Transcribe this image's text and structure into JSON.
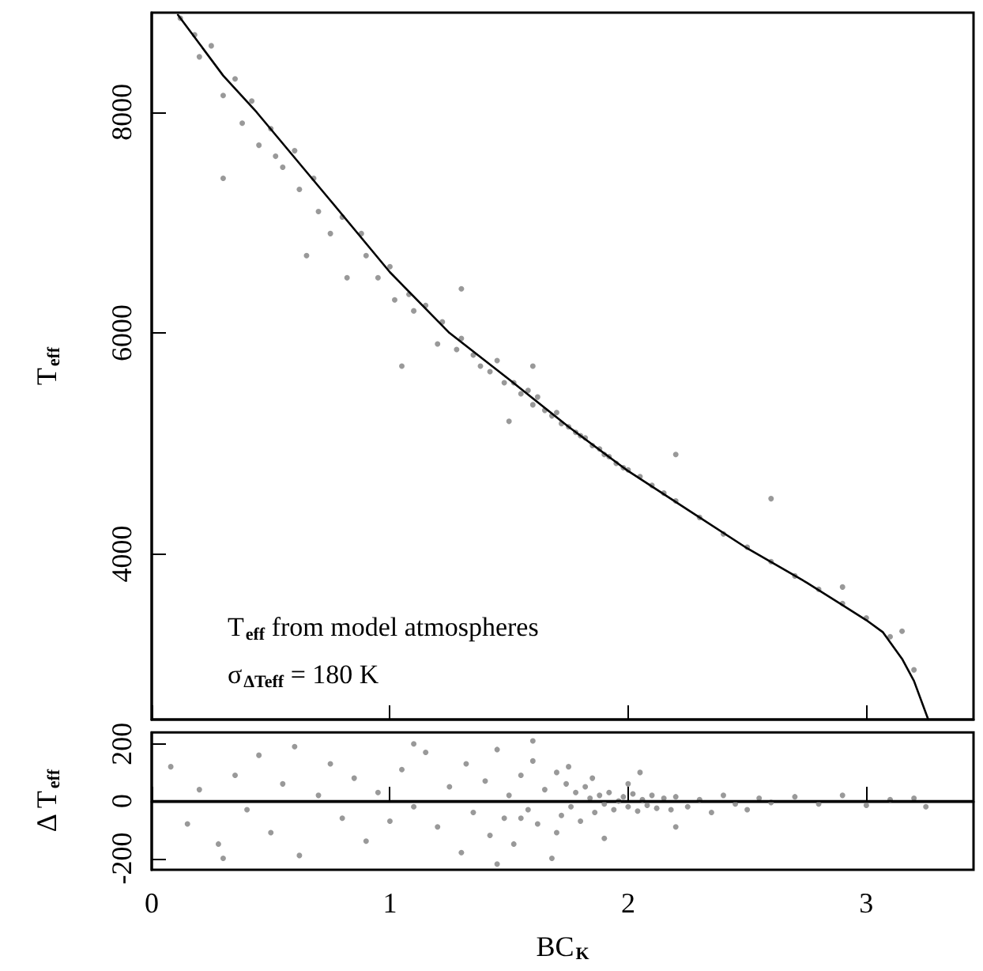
{
  "chart_data": [
    {
      "type": "scatter",
      "ylabel": "T$_{eff}$",
      "annotations": [
        "T$_{eff}$ from model atmospheres",
        "σ$_{ΔTeff}$ = 180 K"
      ],
      "xlim": [
        0,
        3.45
      ],
      "xticks": [
        0,
        1,
        2,
        3
      ],
      "ylim": [
        2500,
        8900
      ],
      "yticks": [
        4000,
        6000,
        8000
      ],
      "tick_labels": "y",
      "grid": false,
      "series": [
        {
          "marker": "circle",
          "color": "#808080",
          "x": [
            0.12,
            0.18,
            0.2,
            0.25,
            0.3,
            0.35,
            0.38,
            0.42,
            0.45,
            0.5,
            0.52,
            0.55,
            0.6,
            0.62,
            0.68,
            0.7,
            0.75,
            0.8,
            0.82,
            0.88,
            0.9,
            0.95,
            1.0,
            1.02,
            1.08,
            1.1,
            1.15,
            1.2,
            1.22,
            1.28,
            1.3,
            1.35,
            1.38,
            1.42,
            1.45,
            1.48,
            1.52,
            1.55,
            1.58,
            1.6,
            1.62,
            1.65,
            1.68,
            1.7,
            1.72,
            1.75,
            1.78,
            1.8,
            1.82,
            1.85,
            1.88,
            1.9,
            1.92,
            1.95,
            1.98,
            2.0,
            2.05,
            2.1,
            2.15,
            2.2,
            2.3,
            2.4,
            2.5,
            2.6,
            2.7,
            2.8,
            2.9,
            3.0,
            3.1,
            3.2,
            0.3,
            0.65,
            1.3,
            1.6,
            2.2,
            2.6,
            1.05,
            1.5,
            2.9,
            3.15
          ],
          "values": [
            8850,
            8700,
            8500,
            8600,
            8150,
            8300,
            7900,
            8100,
            7700,
            7850,
            7600,
            7500,
            7650,
            7300,
            7400,
            7100,
            6900,
            7050,
            6500,
            6900,
            6700,
            6500,
            6600,
            6300,
            6350,
            6200,
            6250,
            5900,
            6100,
            5850,
            5950,
            5800,
            5700,
            5650,
            5750,
            5550,
            5550,
            5450,
            5480,
            5350,
            5420,
            5300,
            5250,
            5280,
            5180,
            5150,
            5100,
            5070,
            5050,
            4980,
            4950,
            4900,
            4880,
            4820,
            4780,
            4760,
            4700,
            4620,
            4550,
            4480,
            4330,
            4180,
            4060,
            3930,
            3800,
            3680,
            3550,
            3420,
            3250,
            2950,
            7400,
            6700,
            6400,
            5700,
            4900,
            4500,
            5700,
            5200,
            3700,
            3300
          ]
        },
        {
          "type": "line",
          "marker": "none",
          "line_style": "solid",
          "color": "#000000",
          "x": [
            0.11,
            0.3,
            0.44,
            0.75,
            1,
            1.25,
            1.5,
            1.75,
            2,
            2.25,
            2.5,
            2.75,
            3,
            3.07,
            3.15,
            3.2,
            3.26
          ],
          "values": [
            8880,
            8330,
            8000,
            7200,
            6550,
            6000,
            5580,
            5150,
            4750,
            4400,
            4050,
            3740,
            3400,
            3290,
            3050,
            2850,
            2500
          ]
        }
      ]
    },
    {
      "type": "scatter",
      "xlabel": "BC$_{K}$",
      "ylabel": "Δ T$_{eff}$",
      "xlim": [
        0,
        3.45
      ],
      "xticks": [
        0,
        1,
        2,
        3
      ],
      "ylim": [
        -240,
        240
      ],
      "yticks": [
        -200,
        0,
        200
      ],
      "grid": false,
      "ref_lines": [
        {
          "axis": "y",
          "value": 0,
          "color": "#000000"
        }
      ],
      "series": [
        {
          "marker": "circle",
          "color": "#808080",
          "x": [
            0.08,
            0.15,
            0.2,
            0.28,
            0.35,
            0.4,
            0.45,
            0.5,
            0.55,
            0.62,
            0.7,
            0.75,
            0.8,
            0.85,
            0.9,
            0.95,
            1.0,
            1.05,
            1.1,
            1.15,
            1.2,
            1.25,
            1.3,
            1.32,
            1.35,
            1.4,
            1.42,
            1.45,
            1.48,
            1.5,
            1.52,
            1.55,
            1.58,
            1.6,
            1.62,
            1.65,
            1.68,
            1.7,
            1.72,
            1.74,
            1.76,
            1.78,
            1.8,
            1.82,
            1.84,
            1.86,
            1.88,
            1.9,
            1.92,
            1.94,
            1.96,
            1.98,
            2.0,
            2.02,
            2.04,
            2.06,
            2.08,
            2.1,
            2.12,
            2.15,
            2.18,
            2.2,
            2.25,
            2.3,
            2.35,
            2.4,
            2.45,
            2.5,
            2.55,
            2.6,
            2.7,
            2.8,
            2.9,
            3.0,
            3.1,
            3.2,
            3.25,
            0.3,
            0.6,
            1.1,
            1.45,
            1.6,
            1.75,
            1.9,
            2.05,
            2.2,
            1.55,
            1.7,
            1.85,
            2.0
          ],
          "values": [
            120,
            -80,
            40,
            -150,
            90,
            -30,
            160,
            -110,
            60,
            -190,
            20,
            130,
            -60,
            80,
            -140,
            30,
            -70,
            110,
            -20,
            170,
            -90,
            50,
            -180,
            130,
            -40,
            70,
            -120,
            180,
            -60,
            20,
            -150,
            90,
            -30,
            140,
            -80,
            40,
            -200,
            100,
            -50,
            60,
            -20,
            30,
            -70,
            50,
            10,
            -40,
            20,
            -10,
            30,
            -30,
            0,
            15,
            -20,
            25,
            -35,
            5,
            -15,
            20,
            -25,
            10,
            -30,
            15,
            -20,
            5,
            -40,
            20,
            -10,
            -30,
            10,
            -5,
            15,
            -10,
            20,
            -15,
            5,
            10,
            -20,
            -200,
            190,
            200,
            -220,
            210,
            120,
            -130,
            100,
            -90,
            -60,
            -110,
            80,
            60
          ]
        }
      ]
    }
  ]
}
